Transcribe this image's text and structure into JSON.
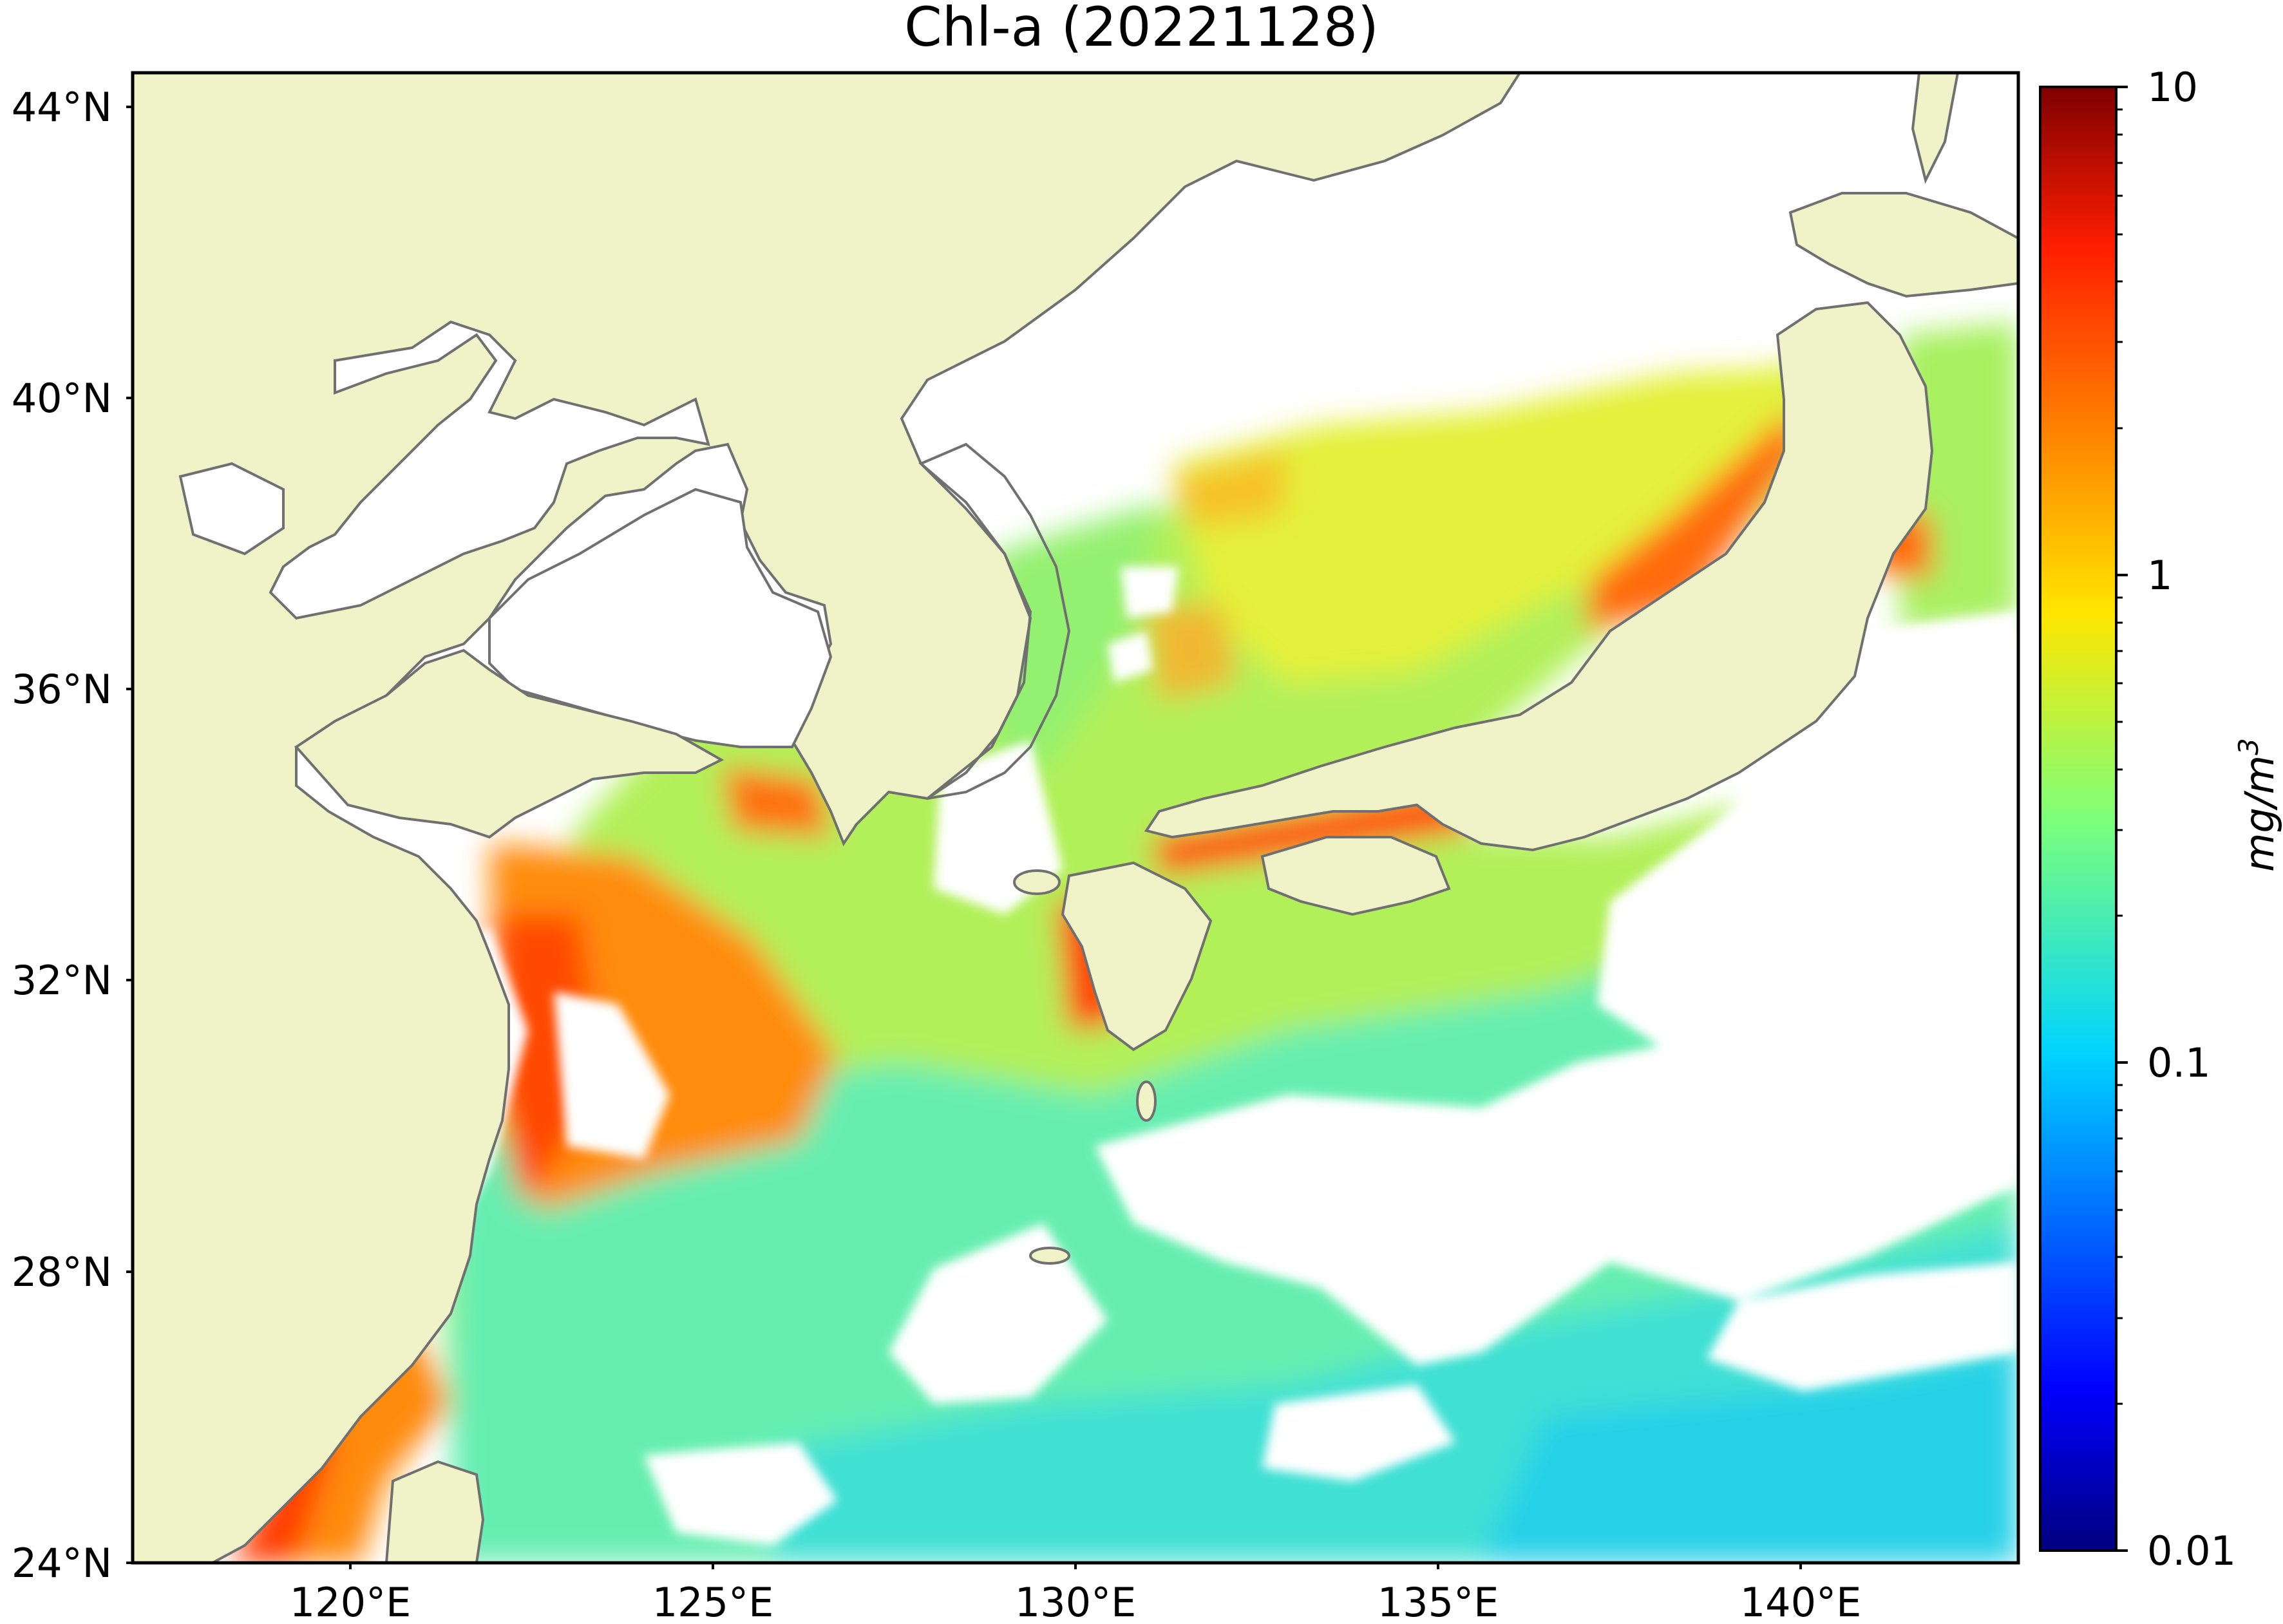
{
  "title": "Chl-a (20221128)",
  "map": {
    "lat_ticks": [
      "44°N",
      "40°N",
      "36°N",
      "32°N",
      "28°N",
      "24°N"
    ],
    "lon_ticks": [
      "120°E",
      "125°E",
      "130°E",
      "135°E",
      "140°E"
    ],
    "extent": {
      "lon_min": 117,
      "lon_max": 143,
      "lat_min": 24,
      "lat_max": 44.5
    },
    "land_color": "#f0f2c8",
    "coastline_color": "#707070",
    "no_data_color": "#ffffff"
  },
  "colorbar": {
    "label": "mg/m",
    "label_superscript": "3",
    "scale": "log",
    "ticks": [
      "10",
      "1",
      "0.1",
      "0.01"
    ],
    "range": [
      0.01,
      10
    ],
    "colormap": "jet"
  }
}
